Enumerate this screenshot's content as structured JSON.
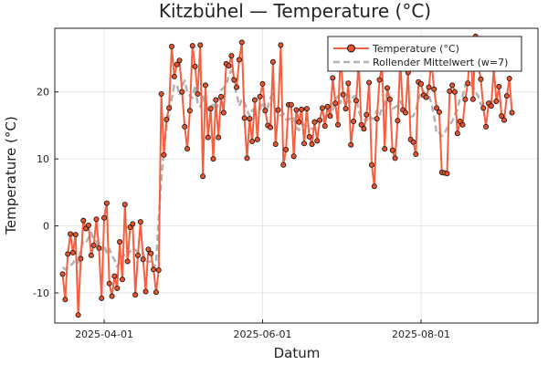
{
  "chart_data": {
    "type": "line",
    "title": "Kitzbühel — Temperature (°C)",
    "xlabel": "Datum",
    "ylabel": "Temperature (°C)",
    "x_start": "2025-03-16",
    "x_end": "2025-09-12",
    "xlim": [
      "2025-03-13",
      "2025-09-15"
    ],
    "ylim": [
      -14.5,
      29.5
    ],
    "x_ticks": [
      {
        "date": "2025-04-01",
        "label": "2025-04-01"
      },
      {
        "date": "2025-06-01",
        "label": "2025-06-01"
      },
      {
        "date": "2025-08-01",
        "label": "2025-08-01"
      }
    ],
    "y_ticks": [
      -10,
      0,
      10,
      20
    ],
    "grid": true,
    "legend_position": "top-right",
    "colors": {
      "temperature": "#f4603f",
      "rolling": "#b3b3b3",
      "marker_fill": "#e8532c",
      "marker_edge": "#111111"
    },
    "series": [
      {
        "name": "Temperature (°C)",
        "style": "line+markers",
        "values": [
          -7.2,
          -11.0,
          -4.2,
          -1.2,
          -4.0,
          -1.3,
          -13.3,
          -4.9,
          0.8,
          -0.4,
          0.1,
          -4.4,
          -2.9,
          1.0,
          -3.3,
          -10.8,
          1.2,
          3.4,
          -8.6,
          -10.5,
          -7.5,
          -9.3,
          -2.4,
          -8.0,
          3.2,
          -5.3,
          -0.2,
          0.3,
          -10.3,
          -4.4,
          0.6,
          -5.0,
          -9.8,
          -3.5,
          -4.1,
          -6.5,
          -9.9,
          -6.6,
          19.7,
          10.6,
          15.9,
          17.6,
          26.8,
          22.3,
          24.1,
          24.7,
          20.0,
          14.8,
          11.5,
          17.2,
          26.9,
          23.8,
          19.7,
          27.0,
          7.4,
          21.0,
          13.2,
          17.5,
          10.0,
          18.8,
          13.2,
          19.3,
          16.9,
          24.2,
          23.9,
          25.4,
          21.8,
          20.7,
          24.8,
          27.4,
          16.1,
          10.1,
          16.0,
          12.6,
          18.8,
          12.9,
          19.3,
          21.2,
          17.2,
          15.0,
          14.7,
          24.5,
          12.2,
          17.3,
          27.0,
          9.1,
          11.4,
          18.1,
          18.1,
          10.4,
          17.3,
          15.5,
          17.4,
          12.3,
          17.5,
          13.3,
          12.2,
          15.5,
          12.7,
          15.8,
          17.6,
          14.9,
          17.8,
          16.4,
          22.1,
          18.3,
          15.1,
          26.0,
          19.6,
          17.5,
          21.3,
          12.1,
          15.6,
          18.7,
          24.4,
          15.1,
          14.5,
          16.6,
          21.4,
          9.1,
          5.9,
          16.0,
          21.8,
          23.9,
          11.5,
          20.6,
          18.9,
          11.3,
          10.1,
          15.7,
          24.7,
          17.3,
          16.9,
          22.9,
          12.9,
          12.5,
          10.7,
          21.5,
          21.2,
          19.5,
          19.2,
          20.7,
          24.6,
          20.4,
          17.6,
          17.0,
          8.0,
          7.9,
          7.8,
          20.1,
          21.0,
          20.0,
          13.8,
          15.6,
          15.1,
          18.9,
          21.3,
          27.2,
          18.9,
          28.3,
          24.0,
          21.9,
          17.6,
          14.8,
          18.3,
          17.9,
          23.4,
          18.6,
          20.8,
          16.4,
          15.8,
          19.4,
          22.0,
          16.9
        ]
      },
      {
        "name": "Rollender Mittelwert (w=7)",
        "style": "dashed",
        "values": [
          -6.2,
          -6.5,
          -6.1,
          -5.9,
          -5.6,
          -4.8,
          -5.5,
          -3.5,
          -2.3,
          -2.5,
          -1.8,
          -1.0,
          -2.1,
          -2.3,
          -3.1,
          -3.6,
          -2.8,
          -4.1,
          -3.4,
          -4.4,
          -5.1,
          -6.1,
          -5.4,
          -4.6,
          -4.2,
          -4.5,
          -3.8,
          -3.4,
          -3.6,
          -3.9,
          -3.7,
          -4.0,
          -5.2,
          -5.4,
          -5.3,
          -6.3,
          -5.5,
          1.2,
          6.9,
          11.1,
          14.8,
          16.5,
          19.0,
          21.0,
          21.1,
          19.5,
          20.8,
          21.7,
          20.0,
          19.4,
          19.1,
          21.0,
          18.2,
          17.8,
          19.3,
          18.0,
          17.3,
          17.9,
          18.1,
          17.2,
          18.4,
          20.3,
          20.6,
          21.0,
          22.5,
          23.2,
          21.2,
          19.6,
          17.9,
          18.9,
          18.4,
          17.3,
          16.4,
          17.2,
          17.6,
          17.5,
          17.4,
          18.5,
          17.2,
          17.7,
          19.1,
          19.7,
          17.0,
          17.0,
          16.5,
          16.8,
          15.9,
          15.8,
          16.3,
          16.1,
          14.6,
          14.3,
          15.1,
          15.1,
          14.8,
          14.6,
          14.5,
          14.5,
          15.7,
          15.9,
          15.8,
          16.2,
          16.9,
          16.2,
          17.2,
          18.8,
          19.4,
          18.3,
          19.5,
          18.3,
          18.6,
          18.5,
          19.3,
          19.4,
          17.1,
          16.2,
          16.0,
          15.7,
          16.5,
          16.0,
          16.1,
          17.2,
          16.4,
          17.7,
          18.1,
          19.8,
          18.5,
          17.5,
          17.7,
          18.0,
          18.6,
          17.9,
          16.8,
          16.6,
          16.3,
          16.4,
          17.2,
          18.9,
          19.8,
          20.1,
          19.4,
          19.6,
          18.2,
          16.4,
          13.8,
          13.9,
          13.4,
          13.8,
          14.6,
          15.1,
          15.6,
          16.6,
          17.4,
          19.1,
          19.4,
          21.0,
          21.5,
          21.1,
          20.7,
          20.0,
          19.4,
          18.1,
          18.1,
          18.0,
          18.0,
          18.9,
          18.5,
          18.3,
          18.9
        ]
      }
    ]
  }
}
